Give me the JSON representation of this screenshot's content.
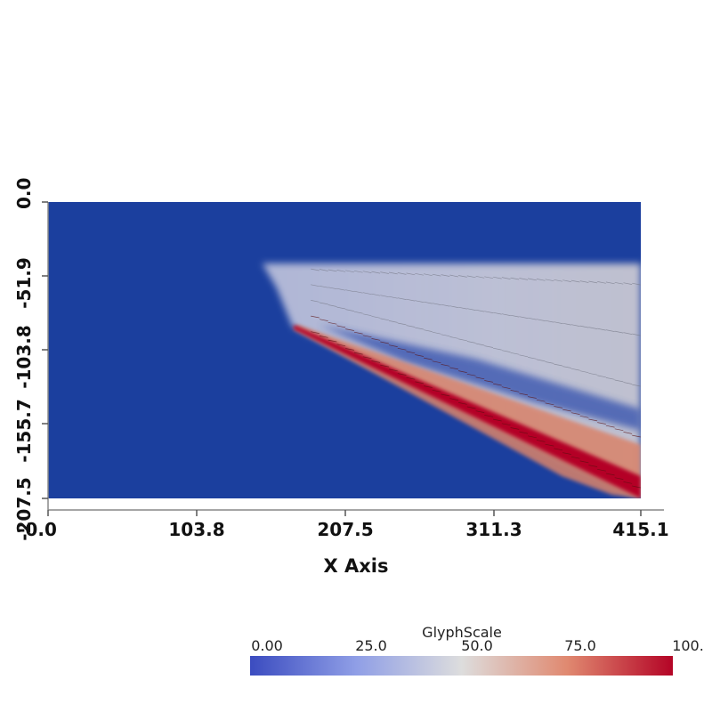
{
  "chart_data": {
    "type": "heatmap",
    "title": "",
    "xlabel": "X Axis",
    "ylabel": "",
    "xlim": [
      0,
      415.1
    ],
    "ylim": [
      -207.5,
      0
    ],
    "x_ticks": [
      "-0.0",
      "103.8",
      "207.5",
      "311.3",
      "415.1"
    ],
    "y_ticks": [
      "0.0",
      "-51.9",
      "-103.8",
      "-155.7",
      "-207.5"
    ],
    "colorbar": {
      "title": "GlyphScale",
      "range": [
        0,
        100
      ],
      "labels": [
        "0.00",
        "25.0",
        "50.0",
        "75.0",
        "100."
      ],
      "colors": [
        "#3b4cc0",
        "#dddddd",
        "#b40426"
      ]
    },
    "background_color": "#1b3f9e",
    "field": {
      "plume_tip": [
        171,
        -87
      ],
      "plume_bottom_edge": [
        [
          171,
          -87
        ],
        [
          415.1,
          -207.5
        ]
      ],
      "plume_top_edge": [
        [
          150,
          -43
        ],
        [
          415.1,
          -43
        ]
      ],
      "plume_inner_edge": [
        [
          190,
          -86
        ],
        [
          415.1,
          -145
        ]
      ],
      "max_band": [
        [
          171,
          -87
        ],
        [
          415.1,
          -207.5
        ]
      ]
    }
  }
}
